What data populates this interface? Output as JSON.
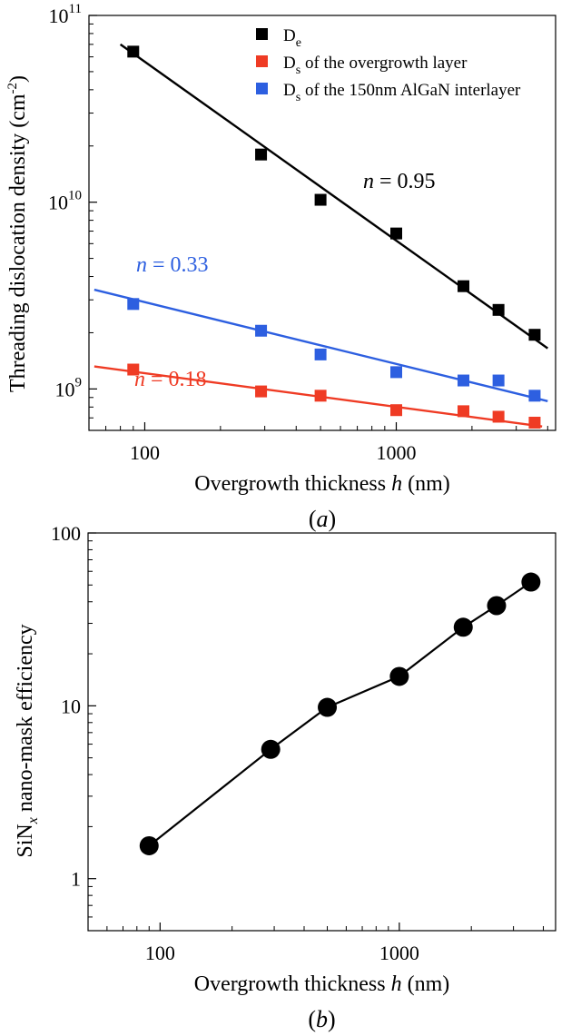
{
  "chart_data": [
    {
      "type": "scatter",
      "panel": "(a)",
      "caption_parts": [
        "(",
        "a",
        ")"
      ],
      "xscale": "log",
      "yscale": "log",
      "xlabel_parts": [
        "Overgrowth thickness ",
        "h",
        " (nm)"
      ],
      "ylabel_parts": [
        "Threading dislocation density (cm",
        "-2",
        ")"
      ],
      "xlim": [
        60,
        4300
      ],
      "ylim": [
        600000000,
        100000000000
      ],
      "xticks": [
        {
          "value": 100,
          "label": "100"
        },
        {
          "value": 1000,
          "label": "1000"
        }
      ],
      "yticks": [
        {
          "value": 1000000000,
          "base": "10",
          "exp": "9"
        },
        {
          "value": 10000000000,
          "base": "10",
          "exp": "10"
        },
        {
          "value": 100000000000,
          "base": "10",
          "exp": "11"
        }
      ],
      "legend_position": "top-right",
      "series": [
        {
          "legend": {
            "main": "D",
            "sub": "e",
            "rest": ""
          },
          "color": "#000000",
          "x": [
            90,
            290,
            500,
            1000,
            1850,
            2550,
            3550
          ],
          "y": [
            64000000000,
            18000000000,
            10300000000,
            6800000000,
            3550000000,
            2650000000,
            1950000000
          ],
          "fit": {
            "x": [
              80,
              4000
            ],
            "y": [
              70000000000,
              1650000000
            ]
          },
          "annotation": {
            "italic": "n",
            "rest": " = 0.95"
          }
        },
        {
          "legend": {
            "main": "D",
            "sub": "s",
            "rest": " of the overgrowth layer"
          },
          "color": "#ef3b24",
          "x": [
            90,
            290,
            500,
            1000,
            1850,
            2550,
            3550
          ],
          "y": [
            1270000000,
            970000000,
            920000000,
            770000000,
            760000000,
            710000000,
            660000000
          ],
          "fit": {
            "x": [
              63,
              3800
            ],
            "y": [
              1320000000,
              630000000
            ]
          },
          "annotation": {
            "italic": "n",
            "rest": " = 0.18"
          }
        },
        {
          "legend": {
            "main": "D",
            "sub": "s",
            "rest": " of the 150nm AlGaN interlayer"
          },
          "color": "#2d5fe0",
          "x": [
            90,
            290,
            500,
            1000,
            1850,
            2550,
            3550
          ],
          "y": [
            2850000000,
            2050000000,
            1530000000,
            1230000000,
            1110000000,
            1110000000,
            920000000
          ],
          "fit": {
            "x": [
              63,
              4000
            ],
            "y": [
              3400000000,
              860000000
            ]
          },
          "annotation": {
            "italic": "n",
            "rest": " = 0.33"
          }
        }
      ]
    },
    {
      "type": "line",
      "panel": "(b)",
      "caption_parts": [
        "(",
        "b",
        ")"
      ],
      "xscale": "log",
      "yscale": "log",
      "xlabel_parts": [
        "Overgrowth thickness ",
        "h",
        " (nm)"
      ],
      "ylabel_parts": [
        "SiN",
        "x",
        " nano-mask efficiency"
      ],
      "xlim": [
        50,
        4500
      ],
      "ylim": [
        0.5,
        100
      ],
      "xticks": [
        {
          "value": 100,
          "label": "100"
        },
        {
          "value": 1000,
          "label": "1000"
        }
      ],
      "yticks": [
        {
          "value": 1,
          "label": "1"
        },
        {
          "value": 10,
          "label": "10"
        },
        {
          "value": 100,
          "label": "100"
        }
      ],
      "series": [
        {
          "color": "#000000",
          "marker": "circle",
          "x": [
            90,
            290,
            500,
            1000,
            1850,
            2550,
            3550
          ],
          "y": [
            1.55,
            5.6,
            9.8,
            14.8,
            28.5,
            38,
            52
          ]
        }
      ]
    }
  ]
}
